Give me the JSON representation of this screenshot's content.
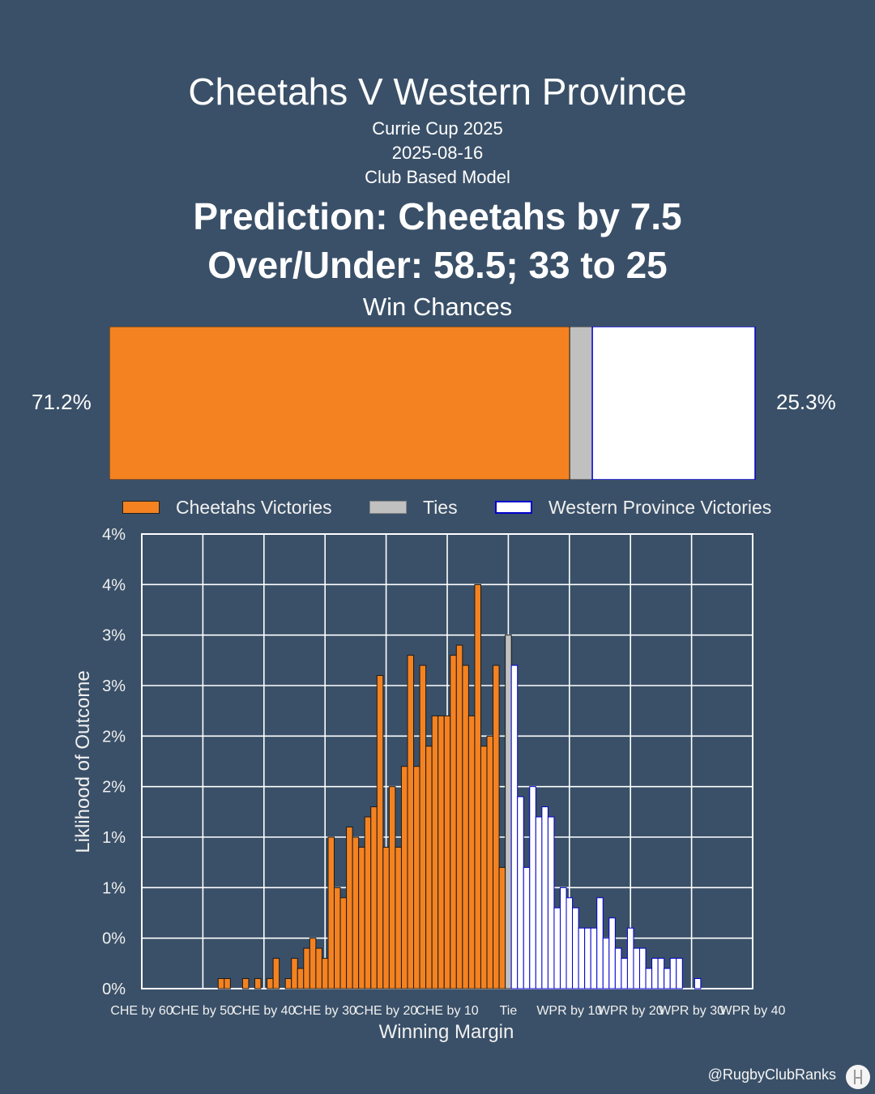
{
  "header": {
    "title": "Cheetahs V Western Province",
    "competition": "Currie Cup 2025",
    "date": "2025-08-16",
    "model": "Club Based Model",
    "prediction": "Prediction: Cheetahs by 7.5",
    "over_under": "Over/Under: 58.5; 33 to 25"
  },
  "win_chances": {
    "title": "Win Chances",
    "home_pct_label": "71.2%",
    "away_pct_label": "25.3%",
    "home_fraction": 0.712,
    "tie_fraction": 0.035,
    "away_fraction": 0.253
  },
  "legend": {
    "home": "Cheetahs Victories",
    "tie": "Ties",
    "away": "Western Province Victories"
  },
  "colors": {
    "background": "#3a5068",
    "home": "#f58220",
    "tie": "#c0c0c0",
    "away": "#ffffff",
    "away_edge": "#0000cc"
  },
  "credit": "@RugbyClubRanks",
  "logo_icon": "rugby-posts-icon",
  "chart_data": {
    "type": "bar",
    "xlabel": "Winning Margin",
    "ylabel": "Liklihood of Outcome",
    "x_ticks": [
      "CHE by 60",
      "CHE by 50",
      "CHE by 40",
      "CHE by 30",
      "CHE by 20",
      "CHE by 10",
      "Tie",
      "WPR by 10",
      "WPR by 20",
      "WPR by 30",
      "WPR by 40"
    ],
    "x_tick_values": [
      -60,
      -50,
      -40,
      -30,
      -20,
      -10,
      0,
      10,
      20,
      30,
      40
    ],
    "y_tick_labels": [
      "0%",
      "0%",
      "1%",
      "1%",
      "2%",
      "2%",
      "3%",
      "3%",
      "4%",
      "4%"
    ],
    "y_tick_values": [
      0,
      0.5,
      1,
      1.5,
      2,
      2.5,
      3,
      3.5,
      4,
      4.5
    ],
    "xlim": [
      -60,
      40
    ],
    "ylim": [
      0,
      4.5
    ],
    "grid": true,
    "series": [
      {
        "name": "Cheetahs Victories",
        "x": [
          -47,
          -46,
          -43,
          -41,
          -39,
          -38,
          -36,
          -35,
          -34,
          -33,
          -32,
          -31,
          -30,
          -29,
          -28,
          -27,
          -26,
          -25,
          -24,
          -23,
          -22,
          -21,
          -20,
          -19,
          -18,
          -17,
          -16,
          -15,
          -14,
          -13,
          -12,
          -11,
          -10,
          -9,
          -8,
          -7,
          -6,
          -5,
          -4,
          -3,
          -2,
          -1
        ],
        "values": [
          0.1,
          0.1,
          0.1,
          0.1,
          0.1,
          0.3,
          0.1,
          0.3,
          0.2,
          0.4,
          0.5,
          0.4,
          0.3,
          1.5,
          1.0,
          0.9,
          1.6,
          1.5,
          1.4,
          1.7,
          1.8,
          3.1,
          1.4,
          2.0,
          1.4,
          2.2,
          3.3,
          2.2,
          3.2,
          2.4,
          2.7,
          2.7,
          2.7,
          3.3,
          3.4,
          3.2,
          2.7,
          4.0,
          2.4,
          2.5,
          3.2,
          1.2
        ],
        "color": "#f58220"
      },
      {
        "name": "Ties",
        "x": [
          0
        ],
        "values": [
          3.5
        ],
        "color": "#c0c0c0"
      },
      {
        "name": "Western Province Victories",
        "x": [
          1,
          2,
          3,
          4,
          5,
          6,
          7,
          8,
          9,
          10,
          11,
          12,
          13,
          14,
          15,
          16,
          17,
          18,
          19,
          20,
          21,
          22,
          23,
          24,
          25,
          26,
          27,
          28,
          31
        ],
        "values": [
          3.2,
          1.9,
          1.2,
          2.0,
          1.7,
          1.8,
          1.7,
          0.8,
          1.0,
          0.9,
          0.8,
          0.6,
          0.6,
          0.6,
          0.9,
          0.5,
          0.7,
          0.4,
          0.3,
          0.6,
          0.4,
          0.4,
          0.2,
          0.3,
          0.3,
          0.2,
          0.3,
          0.3,
          0.1
        ],
        "color": "#ffffff"
      }
    ]
  }
}
